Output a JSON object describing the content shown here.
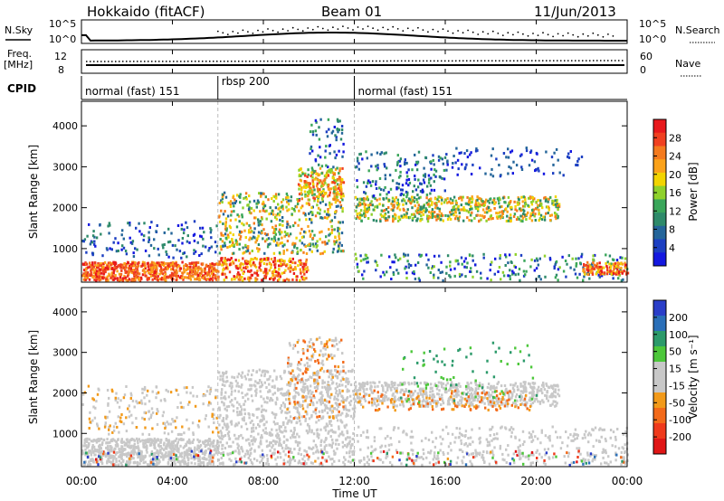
{
  "header": {
    "station": "Hokkaido (fitACF)",
    "beam": "Beam 01",
    "date": "11/Jun/2013"
  },
  "nsky_panel": {
    "left_label": "N.Sky",
    "right_label": "N.Search",
    "left_ticks": [
      "10^5",
      "10^0"
    ],
    "right_ticks": [
      "10^5",
      "10^0"
    ]
  },
  "freq_panel": {
    "left_label_1": "Freq.",
    "left_label_2": "[MHz]",
    "right_label": "Nave",
    "left_ticks": [
      "12",
      "8"
    ],
    "right_ticks": [
      "60",
      "0"
    ]
  },
  "cpid": {
    "label": "CPID",
    "segments": [
      {
        "name": "normal (fast) 151",
        "start_h": 0,
        "end_h": 6
      },
      {
        "name": "rbsp 200",
        "start_h": 6,
        "end_h": 12
      },
      {
        "name": "normal (fast) 151",
        "start_h": 12,
        "end_h": 24
      }
    ]
  },
  "chart_data": [
    {
      "type": "heatmap",
      "title": "Power",
      "ylabel": "Slant Range [km]",
      "colorbar_label": "Power [dB]",
      "x_range_h": [
        0,
        24
      ],
      "ylim": [
        180,
        4600
      ],
      "yticks": [
        1000,
        2000,
        3000,
        4000
      ],
      "colorbar_ticks": [
        "28",
        "24",
        "20",
        "16",
        "12",
        "8",
        "4"
      ],
      "colorbar_colors": [
        "#e8191c",
        "#f04020",
        "#f47a1e",
        "#fba21a",
        "#f2d400",
        "#8fd12b",
        "#3aa65a",
        "#2e8a6a",
        "#24659a",
        "#1c3fc2",
        "#1418e0"
      ]
    },
    {
      "type": "heatmap",
      "title": "Velocity",
      "ylabel": "Slant Range [km]",
      "colorbar_label": "Velocity [m s⁻¹]",
      "x_range_h": [
        0,
        24
      ],
      "ylim": [
        180,
        4600
      ],
      "yticks": [
        1000,
        2000,
        3000,
        4000
      ],
      "colorbar_ticks": [
        "200",
        "100",
        "50",
        "15",
        "-15",
        "-50",
        "-100",
        "-200"
      ],
      "colorbar_colors": [
        "#2a3ec8",
        "#2a6fb8",
        "#2b9a6a",
        "#4cc73a",
        "#c8c8c8",
        "#c8c8c8",
        "#f29a1a",
        "#f36a1a",
        "#ef3a1c",
        "#e01616"
      ]
    }
  ],
  "x_axis": {
    "label": "Time UT",
    "ticks": [
      "00:00",
      "04:00",
      "08:00",
      "12:00",
      "16:00",
      "20:00",
      "00:00"
    ]
  }
}
